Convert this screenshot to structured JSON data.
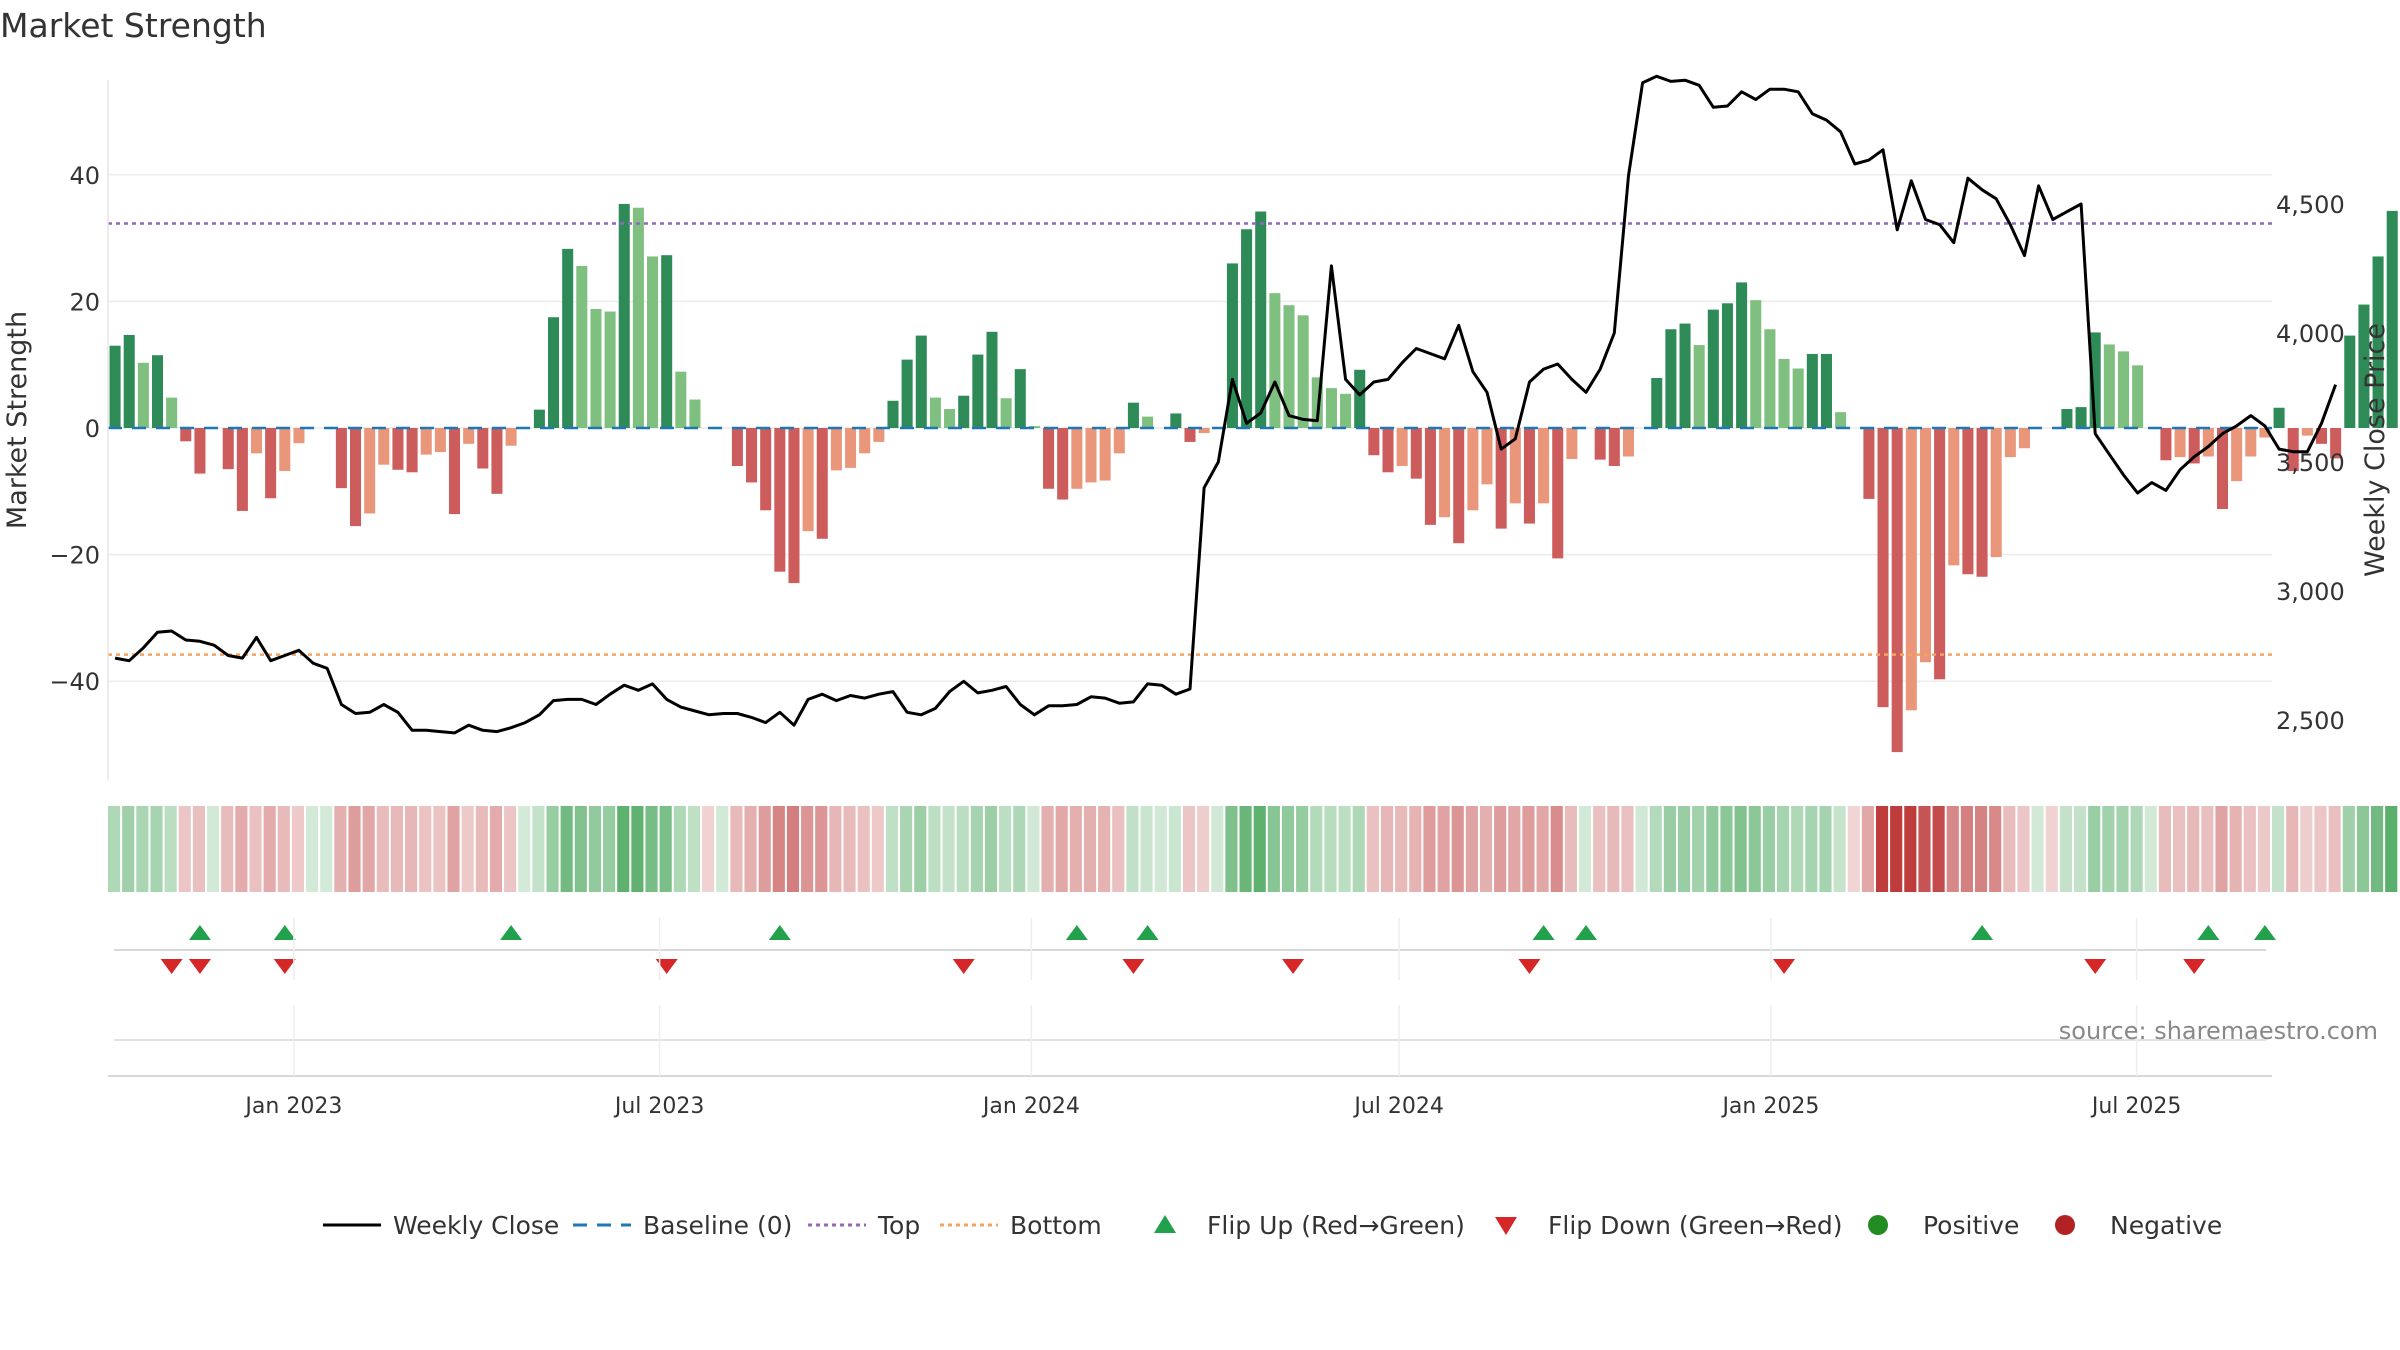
{
  "title": "Market Strength",
  "source": "source: sharemaestro.com",
  "colors": {
    "dark_green": "#2e8b57",
    "light_green": "#7fbf7f",
    "dark_red": "#cd5c5c",
    "light_red": "#e9967a",
    "top_line": "#9467bd",
    "bottom_line": "#f4a460",
    "baseline": "#1f77b4",
    "price_line": "#000000",
    "flip_up": "#22a04b",
    "flip_down": "#d62728",
    "positive": "#228b22",
    "negative": "#b22222"
  },
  "legend": [
    {
      "label": "Weekly Close",
      "icon": "solid-line"
    },
    {
      "label": "Baseline (0)",
      "icon": "dashed-line"
    },
    {
      "label": "Top",
      "icon": "dotted-line"
    },
    {
      "label": "Bottom",
      "icon": "dotted-line"
    },
    {
      "label": "Flip Up (Red→Green)",
      "icon": "triangle-up"
    },
    {
      "label": "Flip Down (Green→Red)",
      "icon": "triangle-down"
    },
    {
      "label": "Positive",
      "icon": "circle"
    },
    {
      "label": "Negative",
      "icon": "circle"
    }
  ],
  "chart_data": {
    "type": "bar",
    "title": "Market Strength",
    "ylabel": "Market Strength",
    "y2label": "Weekly Close Price",
    "ylim": [
      -55,
      55
    ],
    "y2lim": [
      2250,
      4950
    ],
    "yticks": [
      -40,
      -20,
      0,
      20,
      40
    ],
    "yticklabels": [
      "−40",
      "−20",
      "0",
      "20",
      "40"
    ],
    "y2ticks": [
      2500,
      3000,
      3500,
      4000,
      4500
    ],
    "y2ticklabels": [
      "2,500",
      "3,000",
      "3,500",
      "4,000",
      "4,500"
    ],
    "x_start": "2022-10-01",
    "x_end": "2025-09-06",
    "xticks": [
      "2023-01-01",
      "2023-07-01",
      "2024-01-01",
      "2024-07-01",
      "2025-01-01",
      "2025-07-01"
    ],
    "xticklabels": [
      "Jan 2023",
      "Jul 2023",
      "Jan 2024",
      "Jul 2024",
      "Jan 2025",
      "Jul 2025"
    ],
    "top_level": 32.3,
    "bottom_level": -35.8,
    "grid": true,
    "legend_position": "bottom",
    "weeks": {
      "start": "2022-10-01",
      "count": 158,
      "strength": [
        13,
        14.7,
        10.3,
        11.5,
        4.8,
        -2.1,
        -7.2,
        0,
        -6.5,
        -13.1,
        -4,
        -11.1,
        -6.8,
        -2.4,
        0,
        0,
        -9.5,
        -15.5,
        -13.5,
        -5.8,
        -6.6,
        -7,
        -4.2,
        -3.8,
        -13.6,
        -2.5,
        -6.4,
        -10.4,
        -2.8,
        0,
        2.9,
        17.5,
        28.3,
        25.6,
        18.8,
        18.4,
        35.4,
        34.8,
        27.1,
        27.3,
        8.9,
        4.5,
        0,
        0,
        -6,
        -8.6,
        -13,
        -22.7,
        -24.5,
        -16.3,
        -17.5,
        -6.7,
        -6.3,
        -4,
        -2.2,
        4.3,
        10.8,
        14.6,
        4.8,
        3,
        5.1,
        11.6,
        15.2,
        4.7,
        9.3,
        0.3,
        -9.6,
        -11.3,
        -9.6,
        -8.6,
        -8.3,
        -4,
        4,
        1.8,
        0,
        2.3,
        -2.2,
        -0.8,
        0,
        26,
        31.4,
        34.2,
        21.3,
        19.4,
        17.8,
        8,
        6.3,
        5.4,
        9.2,
        -4.3,
        -7,
        -6,
        -8,
        -15.3,
        -14.1,
        -18.2,
        -13,
        -8.9,
        -15.9,
        -11.9,
        -15.1,
        -11.9,
        -20.6,
        -4.9,
        0,
        -5,
        -6,
        -4.5,
        0,
        7.9,
        15.6,
        16.5,
        13.1,
        18.7,
        19.7,
        23,
        20.2,
        15.6,
        10.9,
        9.4,
        11.7,
        11.7,
        2.5,
        0,
        -11.2,
        -44.1,
        -51.2,
        -44.6,
        -37,
        -39.7,
        -21.7,
        -23.1,
        -23.5,
        -20.4,
        -4.6,
        -3.2,
        0,
        0,
        3,
        3.3,
        15.1,
        13.2,
        12.1,
        9.9,
        0,
        -5.1,
        -4.6,
        -5.6,
        -4.5,
        -12.8,
        -8.4,
        -4.5,
        -1.5,
        3.2,
        -6.8,
        -1.2,
        -2.5,
        -4.8,
        14.6,
        19.5,
        27.1,
        34.3
      ],
      "close": [
        2740,
        2730,
        2780,
        2840,
        2845,
        2810,
        2805,
        2790,
        2750,
        2740,
        2820,
        2730,
        2750,
        2770,
        2720,
        2700,
        2560,
        2525,
        2530,
        2560,
        2530,
        2460,
        2460,
        2455,
        2450,
        2480,
        2460,
        2455,
        2470,
        2490,
        2520,
        2575,
        2580,
        2580,
        2560,
        2600,
        2635,
        2615,
        2640,
        2580,
        2550,
        2535,
        2520,
        2525,
        2525,
        2510,
        2490,
        2530,
        2480,
        2580,
        2600,
        2575,
        2595,
        2585,
        2600,
        2610,
        2530,
        2520,
        2545,
        2610,
        2650,
        2605,
        2615,
        2630,
        2560,
        2520,
        2555,
        2555,
        2560,
        2590,
        2585,
        2565,
        2570,
        2640,
        2635,
        2600,
        2620,
        3400,
        3500,
        3820,
        3650,
        3690,
        3810,
        3680,
        3665,
        3660,
        4260,
        3820,
        3760,
        3810,
        3820,
        3885,
        3940,
        3920,
        3900,
        4030,
        3850,
        3770,
        3550,
        3590,
        3810,
        3860,
        3880,
        3820,
        3770,
        3860,
        4000,
        4610,
        4970,
        4995,
        4975,
        4980,
        4960,
        4875,
        4880,
        4935,
        4905,
        4945,
        4945,
        4935,
        4850,
        4825,
        4780,
        4655,
        4670,
        4710,
        4400,
        4590,
        4440,
        4420,
        4350,
        4600,
        4555,
        4520,
        4420,
        4300,
        4570,
        4440,
        4470,
        4500,
        3610,
        3530,
        3450,
        3380,
        3420,
        3390,
        3470,
        3520,
        3560,
        3610,
        3640,
        3680,
        3640,
        3550,
        3540,
        3540,
        3650,
        3800
      ],
      "band_strength": [
        10.3,
        14.7,
        12.3,
        12.4,
        7.1,
        -3.9,
        -6.2,
        0.5,
        -6.6,
        -11.6,
        -5.4,
        -11.3,
        -7.4,
        -3.5,
        0.5,
        0,
        -10.7,
        -15.3,
        -13.2,
        -6.8,
        -7.6,
        -8.1,
        -5.1,
        -4.8,
        -13.9,
        -3.4,
        -7.2,
        -11.6,
        -3.8,
        0,
        4.2,
        16.9,
        27.3,
        23.6,
        18.8,
        17.7,
        32.8,
        32.4,
        26,
        25.4,
        10.4,
        5.8,
        -0.4,
        0.6,
        -7.6,
        -10.5,
        -15.3,
        -22.3,
        -24.2,
        -17.6,
        -17.5,
        -8.5,
        -7.2,
        -5.5,
        -3.5,
        6,
        12.2,
        15.3,
        6.4,
        4.9,
        7.2,
        12.9,
        16.1,
        6.6,
        11.2,
        1.1,
        -10.5,
        -12.4,
        -10.3,
        -10.3,
        -9.5,
        -5.5,
        5.5,
        3.1,
        1,
        3,
        -3.6,
        -2.2,
        1,
        24.4,
        30.5,
        33.2,
        21.3,
        19.1,
        17.4,
        9.3,
        8,
        6.7,
        10.2,
        -5.7,
        -8.3,
        -7.6,
        -9.2,
        -15.8,
        -14.4,
        -17.4,
        -13.5,
        -10.6,
        -16.2,
        -13,
        -15.9,
        -13.4,
        -20.4,
        -6.8,
        0.3,
        -6.3,
        -7.6,
        -6.2,
        1,
        9.1,
        16.3,
        16.6,
        14.5,
        19,
        20.1,
        23.2,
        20.1,
        16.6,
        12.4,
        10.4,
        12.9,
        13.1,
        3.8,
        -0.2,
        -12.8,
        -42.7,
        -49.2,
        -43.2,
        -36.2,
        -38.5,
        -21.6,
        -23.6,
        -23.3,
        -20.8,
        -6.4,
        -4.1,
        0.3,
        -0.5,
        4.2,
        4.6,
        16.3,
        14.5,
        13.6,
        11,
        0.8,
        -6.6,
        -6.3,
        -7.6,
        -5.8,
        -13.5,
        -9.5,
        -5.6,
        -2.7,
        4.9,
        -8.2,
        -2.3,
        -4.1,
        -6.1,
        15,
        20.5,
        27.6,
        34.1
      ]
    },
    "flip_up_weeks": [
      "2022-11-12",
      "2022-12-24",
      "2023-04-15",
      "2023-08-26",
      "2024-01-20",
      "2024-02-24",
      "2024-09-07",
      "2024-09-28",
      "2025-04-12",
      "2025-08-02",
      "2025-08-30"
    ],
    "flip_down_weeks": [
      "2022-10-29",
      "2022-11-12",
      "2022-12-24",
      "2023-07-01",
      "2023-11-25",
      "2024-02-17",
      "2024-05-06",
      "2024-08-31",
      "2025-01-04",
      "2025-06-07",
      "2025-07-26"
    ]
  }
}
